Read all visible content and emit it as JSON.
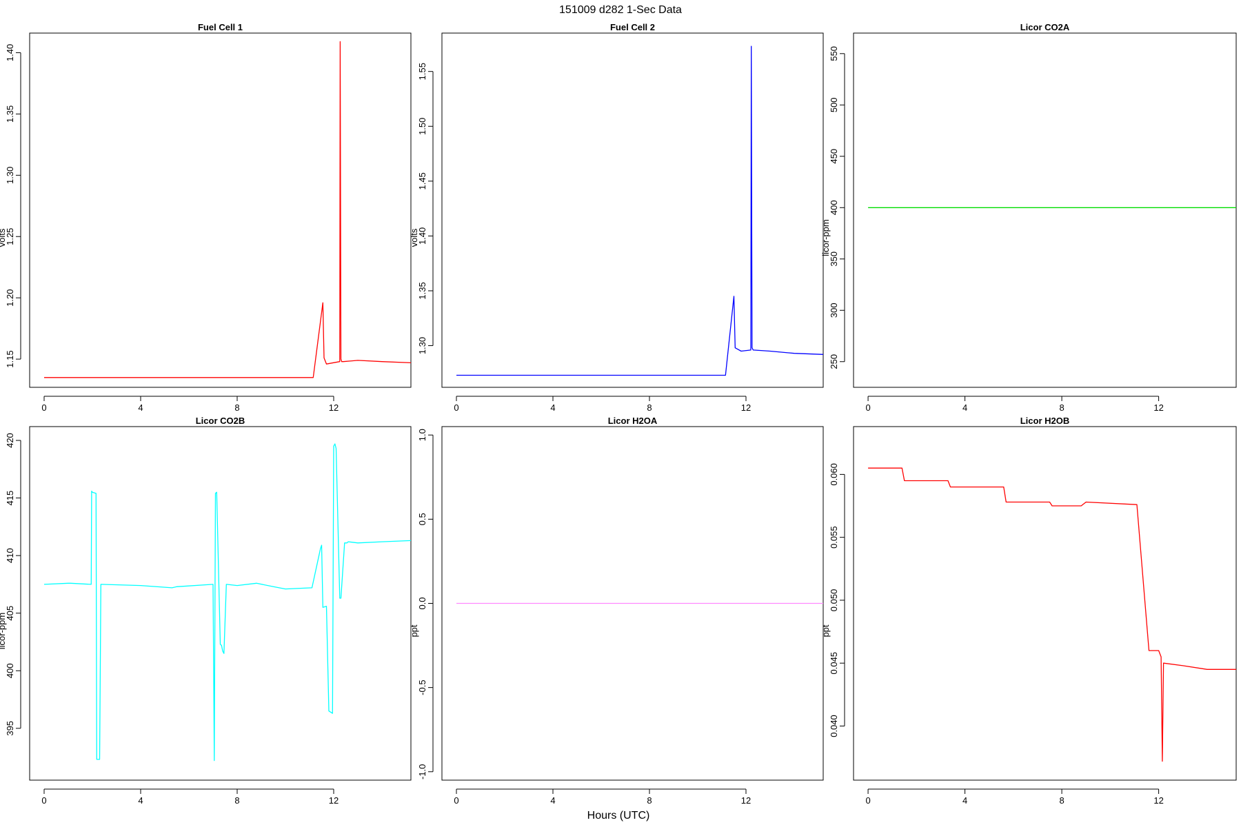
{
  "figure": {
    "title": "151009   d282   1-Sec Data",
    "xlabel": "Hours (UTC)"
  },
  "chart_data": [
    {
      "type": "line",
      "title": "Fuel Cell 1",
      "ylabel": "volts",
      "color": "#ff0000",
      "xlim": [
        -0.6,
        15.2
      ],
      "ylim": [
        1.127,
        1.416
      ],
      "xticks": [
        0,
        4,
        8,
        12
      ],
      "yticks": [
        1.15,
        1.2,
        1.25,
        1.3,
        1.35,
        1.4
      ],
      "yticklabels": [
        "1.15",
        "1.20",
        "1.25",
        "1.30",
        "1.35",
        "1.40"
      ],
      "x": [
        0,
        11.15,
        11.55,
        11.6,
        11.7,
        12.25,
        12.27,
        12.3,
        12.33,
        12.4,
        13.0,
        14.0,
        15.2
      ],
      "y": [
        1.135,
        1.135,
        1.196,
        1.151,
        1.146,
        1.148,
        1.409,
        1.15,
        1.148,
        1.148,
        1.149,
        1.148,
        1.147
      ]
    },
    {
      "type": "line",
      "title": "Fuel Cell 2",
      "ylabel": "volts",
      "color": "#0000ff",
      "xlim": [
        -0.6,
        15.2
      ],
      "ylim": [
        1.262,
        1.585
      ],
      "xticks": [
        0,
        4,
        8,
        12
      ],
      "yticks": [
        1.3,
        1.35,
        1.4,
        1.45,
        1.5,
        1.55
      ],
      "yticklabels": [
        "1.30",
        "1.35",
        "1.40",
        "1.45",
        "1.50",
        "1.55"
      ],
      "x": [
        0,
        11.15,
        11.5,
        11.55,
        11.8,
        12.2,
        12.22,
        12.25,
        12.3,
        13.0,
        14.0,
        15.2
      ],
      "y": [
        1.273,
        1.273,
        1.345,
        1.298,
        1.295,
        1.296,
        1.573,
        1.298,
        1.296,
        1.295,
        1.293,
        1.292
      ],
      "ylabel_note": ""
    },
    {
      "type": "line",
      "title": "Licor CO2A",
      "ylabel": "licor-ppm",
      "color": "#00dd00",
      "xlim": [
        -0.6,
        15.2
      ],
      "ylim": [
        225,
        570
      ],
      "xticks": [
        0,
        4,
        8,
        12
      ],
      "yticks": [
        250,
        300,
        350,
        400,
        450,
        500,
        550
      ],
      "yticklabels": [
        "250",
        "300",
        "350",
        "400",
        "450",
        "500",
        "550"
      ],
      "x": [
        0,
        15.2
      ],
      "y": [
        400,
        400
      ]
    },
    {
      "type": "line",
      "title": "Licor CO2B",
      "ylabel": "licor-ppm",
      "color": "#00ffff",
      "xlim": [
        -0.6,
        15.2
      ],
      "ylim": [
        390.5,
        421.2
      ],
      "xticks": [
        0,
        4,
        8,
        12
      ],
      "yticks": [
        395,
        400,
        405,
        410,
        415,
        420
      ],
      "yticklabels": [
        "395",
        "400",
        "405",
        "410",
        "415",
        "420"
      ],
      "x": [
        0,
        1.0,
        1.1,
        1.95,
        1.97,
        2.0,
        2.15,
        2.18,
        2.3,
        2.35,
        4.0,
        5.3,
        5.5,
        7.0,
        7.05,
        7.1,
        7.15,
        7.3,
        7.35,
        7.4,
        7.45,
        7.55,
        8.0,
        8.8,
        9.5,
        10.0,
        11.1,
        11.45,
        11.5,
        11.55,
        11.7,
        11.8,
        11.95,
        12.0,
        12.05,
        12.1,
        12.25,
        12.3,
        12.45,
        12.55,
        12.6,
        13.0,
        14.0,
        15.2
      ],
      "y": [
        407.5,
        407.6,
        407.6,
        407.5,
        415.6,
        415.5,
        415.4,
        392.3,
        392.3,
        407.5,
        407.4,
        407.2,
        407.3,
        407.5,
        392.2,
        415.4,
        415.5,
        402.3,
        402.2,
        401.7,
        401.5,
        407.5,
        407.4,
        407.6,
        407.3,
        407.1,
        407.2,
        410.6,
        410.9,
        405.5,
        405.6,
        396.5,
        396.3,
        419.5,
        419.7,
        419.3,
        406.3,
        406.3,
        411.1,
        411.1,
        411.2,
        411.1,
        411.2,
        411.3
      ]
    },
    {
      "type": "line",
      "title": "Licor H2OA",
      "ylabel": "ppt",
      "color": "#ff88ff",
      "xlim": [
        -0.6,
        15.2
      ],
      "ylim": [
        -1.05,
        1.05
      ],
      "xticks": [
        0,
        4,
        8,
        12
      ],
      "yticks": [
        -1.0,
        -0.5,
        0.0,
        0.5,
        1.0
      ],
      "yticklabels": [
        "-1.0",
        "-0.5",
        "0.0",
        "0.5",
        "1.0"
      ],
      "x": [
        0,
        15.2
      ],
      "y": [
        0.0,
        0.0
      ]
    },
    {
      "type": "line",
      "title": "Licor H2OB",
      "ylabel": "ppt",
      "color": "#ff0000",
      "xlim": [
        -0.6,
        15.2
      ],
      "ylim": [
        0.0357,
        0.0638
      ],
      "xticks": [
        0,
        4,
        8,
        12
      ],
      "yticks": [
        0.04,
        0.045,
        0.05,
        0.055,
        0.06
      ],
      "yticklabels": [
        "0.040",
        "0.045",
        "0.050",
        "0.055",
        "0.060"
      ],
      "x": [
        0,
        1.4,
        1.5,
        3.3,
        3.4,
        5.6,
        5.7,
        7.5,
        7.6,
        8.8,
        9.0,
        11.1,
        11.6,
        12.0,
        12.1,
        12.15,
        12.2,
        13.0,
        14.0,
        15.2
      ],
      "y": [
        0.0605,
        0.0605,
        0.0595,
        0.0595,
        0.059,
        0.059,
        0.0578,
        0.0578,
        0.0575,
        0.0575,
        0.0578,
        0.0576,
        0.046,
        0.046,
        0.0455,
        0.0372,
        0.045,
        0.0448,
        0.0445,
        0.0445
      ]
    }
  ]
}
